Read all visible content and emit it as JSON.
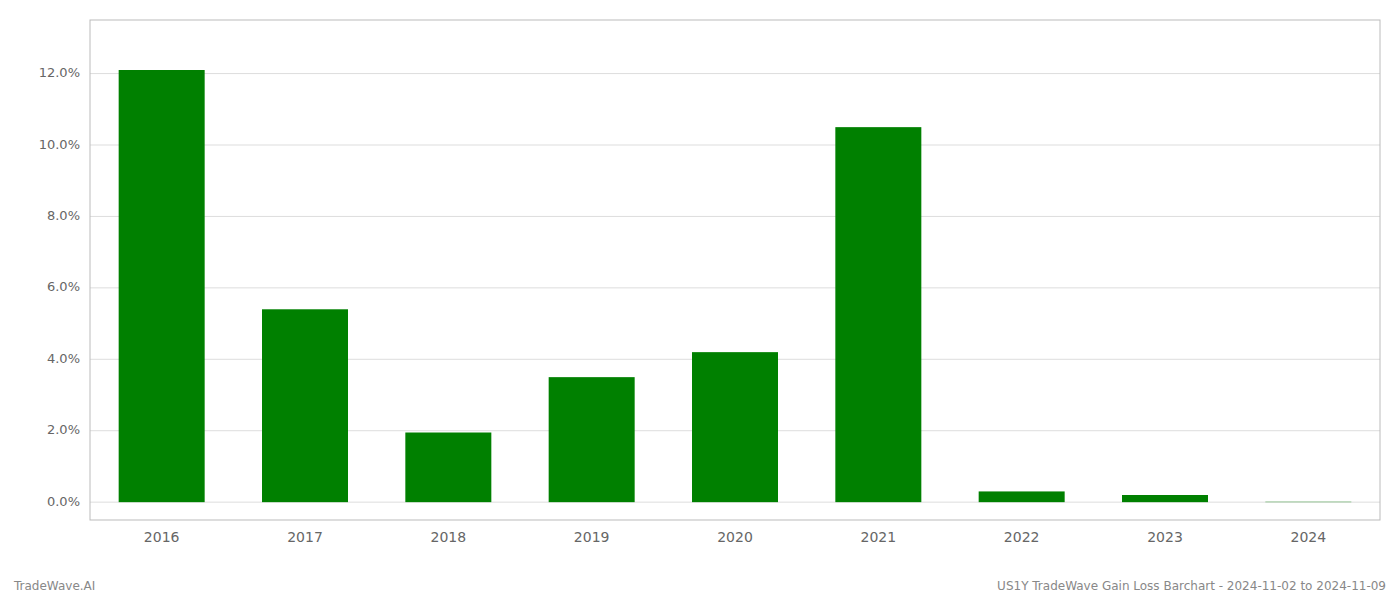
{
  "chart_data": {
    "type": "bar",
    "categories": [
      "2016",
      "2017",
      "2018",
      "2019",
      "2020",
      "2021",
      "2022",
      "2023",
      "2024"
    ],
    "values": [
      0.121,
      0.054,
      0.0195,
      0.035,
      0.042,
      0.105,
      0.003,
      0.002,
      0.0001
    ],
    "color": "#008000",
    "ylim": [
      -0.005,
      0.135
    ],
    "yticks": [
      {
        "value": 0.0,
        "label": "0.0%"
      },
      {
        "value": 0.02,
        "label": "2.0%"
      },
      {
        "value": 0.04,
        "label": "4.0%"
      },
      {
        "value": 0.06,
        "label": "6.0%"
      },
      {
        "value": 0.08,
        "label": "8.0%"
      },
      {
        "value": 0.1,
        "label": "10.0%"
      },
      {
        "value": 0.12,
        "label": "12.0%"
      }
    ],
    "grid": true,
    "annotations": [
      "TradeWave.AI",
      "US1Y TradeWave Gain Loss Barchart - 2024-11-02 to 2024-11-09"
    ]
  }
}
